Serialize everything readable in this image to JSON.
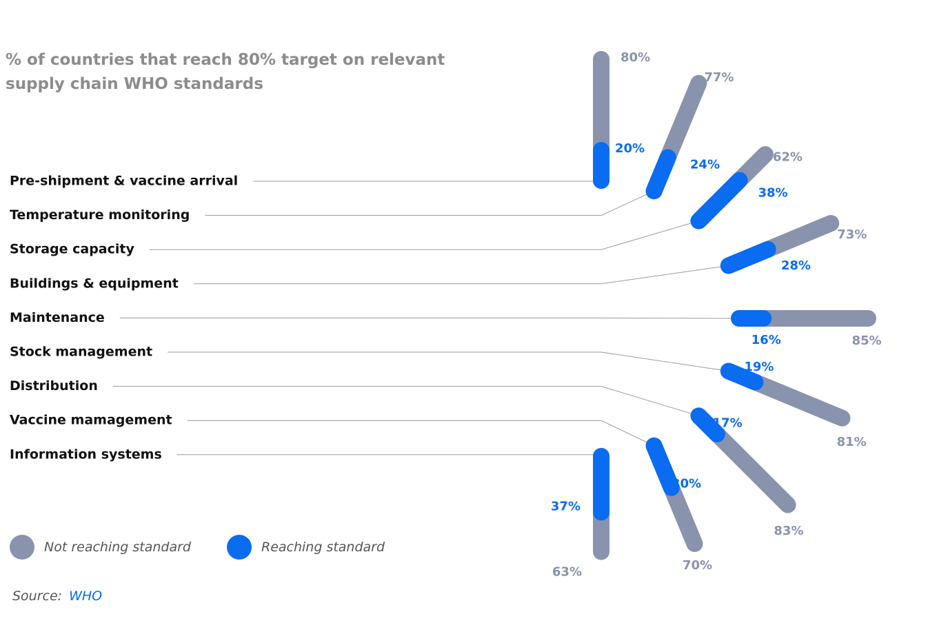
{
  "title": "% of countries that reach 80% target on relevant supply chain WHO standards",
  "legend": {
    "not_reaching": "Not reaching standard",
    "reaching": "Reaching standard"
  },
  "source": {
    "label": "Source:",
    "link": "WHO"
  },
  "colors": {
    "not_reaching": "#8a93ad",
    "reaching": "#0a6cf0",
    "connector": "#9a9a9a"
  },
  "chart_data": {
    "type": "radial-bar",
    "title": "% of countries that reach 80% target on relevant supply chain WHO standards",
    "categories": [
      "Pre-shipment & vaccine arrival",
      "Temperature monitoring",
      "Storage capacity",
      "Buildings & equipment",
      "Maintenance",
      "Stock management",
      "Distribution",
      "Vaccine mamagement",
      "Information systems"
    ],
    "series": [
      {
        "name": "Not reaching standard",
        "values": [
          80,
          77,
          62,
          73,
          85,
          81,
          83,
          70,
          63
        ],
        "labels": [
          "80%",
          "77%",
          "62%",
          "73%",
          "85%",
          "81%",
          "83%",
          "70%",
          "63%"
        ]
      },
      {
        "name": "Reaching standard",
        "values": [
          20,
          24,
          38,
          28,
          16,
          19,
          17,
          30,
          37
        ],
        "labels": [
          "20%",
          "24%",
          "38%",
          "28%",
          "16%",
          "19%",
          "17%",
          "30%",
          "37%"
        ]
      }
    ],
    "unit": "%"
  }
}
